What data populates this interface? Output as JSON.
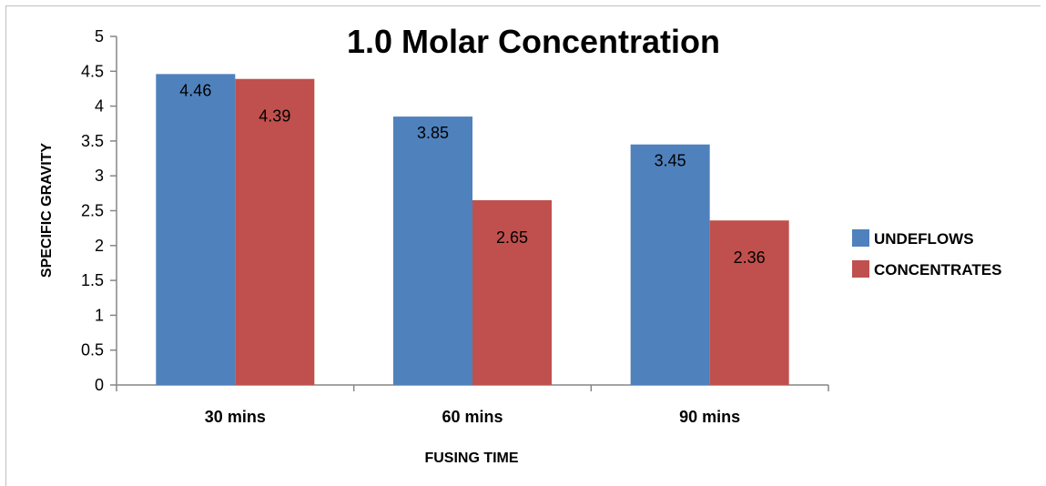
{
  "chart_data": {
    "type": "bar",
    "title": "1.0 Molar Concentration",
    "xlabel": "FUSING TIME",
    "ylabel": "SPECIFIC GRAVITY",
    "categories": [
      "30 mins",
      "60 mins",
      "90 mins"
    ],
    "series": [
      {
        "name": "UNDEFLOWS",
        "values": [
          4.46,
          3.85,
          3.45
        ],
        "color": "#4f81bd",
        "labels": [
          "4.46",
          "3.85",
          "3.45"
        ]
      },
      {
        "name": "CONCENTRATES",
        "values": [
          4.39,
          2.65,
          2.36
        ],
        "color": "#c0504d",
        "labels": [
          "4.39",
          "2.65",
          "2.36"
        ]
      }
    ],
    "ylim": [
      0,
      5
    ],
    "yticks": [
      "0",
      "0.5",
      "1",
      "1.5",
      "2",
      "2.5",
      "3",
      "3.5",
      "4",
      "4.5",
      "5"
    ],
    "grid": false,
    "legend": "right"
  }
}
